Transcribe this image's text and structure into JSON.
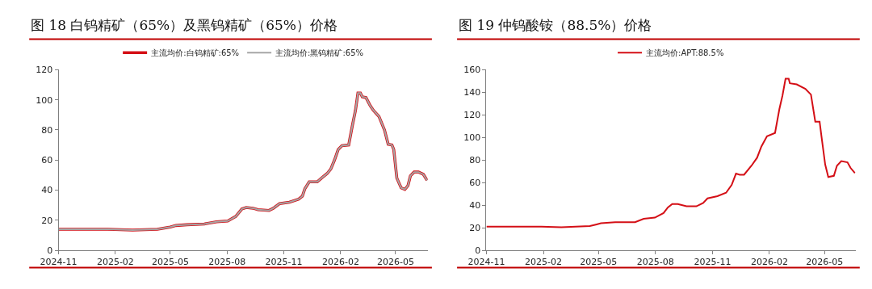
{
  "chart_data": [
    {
      "type": "line",
      "title": "图 18 白钨精矿（65%）及黑钨精矿（65%）价格",
      "legend": "top",
      "marker": "none",
      "line_style": "solid",
      "xlim": [
        "2024-11-01",
        "2026-06-22"
      ],
      "ylim": [
        0,
        120
      ],
      "yticks": [
        0,
        20,
        40,
        60,
        80,
        100,
        120
      ],
      "xticks": [
        {
          "value": "2024-11-01",
          "label": "2024-11"
        },
        {
          "value": "2025-02-01",
          "label": "2025-02"
        },
        {
          "value": "2025-05-01",
          "label": "2025-05"
        },
        {
          "value": "2025-08-01",
          "label": "2025-08"
        },
        {
          "value": "2025-11-01",
          "label": "2025-11"
        },
        {
          "value": "2026-02-01",
          "label": "2026-02"
        },
        {
          "value": "2026-05-01",
          "label": "2026-05"
        }
      ],
      "x": [
        "2024-11-01",
        "2025-01-20",
        "2025-03-01",
        "2025-04-10",
        "2025-05-01",
        "2025-05-10",
        "2025-05-28",
        "2025-06-25",
        "2025-07-15",
        "2025-08-02",
        "2025-08-15",
        "2025-08-25",
        "2025-09-01",
        "2025-09-12",
        "2025-09-20",
        "2025-10-08",
        "2025-10-15",
        "2025-10-25",
        "2025-11-10",
        "2025-11-25",
        "2025-12-01",
        "2025-12-05",
        "2025-12-12",
        "2025-12-25",
        "2026-01-01",
        "2026-01-10",
        "2026-01-16",
        "2026-01-22",
        "2026-01-28",
        "2026-02-03",
        "2026-02-14",
        "2026-02-20",
        "2026-02-25",
        "2026-03-01",
        "2026-03-05",
        "2026-03-08",
        "2026-03-14",
        "2026-03-21",
        "2026-03-26",
        "2026-04-04",
        "2026-04-13",
        "2026-04-19",
        "2026-04-25",
        "2026-04-28",
        "2026-05-03",
        "2026-05-10",
        "2026-05-16",
        "2026-05-21",
        "2026-05-25",
        "2026-05-31",
        "2026-06-07",
        "2026-06-15",
        "2026-06-21"
      ],
      "series": [
        {
          "name": "主流均价:白钨精矿:65%",
          "color": "#d40f16",
          "values": [
            14,
            14,
            13.5,
            14,
            15.5,
            16.5,
            17,
            17.5,
            19,
            19.5,
            22.5,
            27.5,
            28.5,
            28,
            27,
            26.5,
            28,
            31,
            32,
            34,
            36,
            41,
            45.5,
            45.5,
            48,
            51,
            54,
            60,
            67,
            69.5,
            70,
            83,
            93,
            104.5,
            104.5,
            102,
            101.5,
            96,
            93,
            89,
            80,
            70.5,
            70,
            67,
            48,
            41.5,
            40.5,
            43,
            49.5,
            52,
            52,
            50.5,
            46.5
          ]
        },
        {
          "name": "主流均价:黑钨精矿:65%",
          "color": "#a6a6a6",
          "values": [
            14,
            14,
            13.5,
            14,
            15.5,
            16.5,
            17,
            17.5,
            19,
            19.5,
            22.5,
            27.5,
            28.5,
            28,
            27,
            26.5,
            28,
            31,
            32,
            34,
            36,
            41,
            45.5,
            45.5,
            48,
            51,
            54,
            60,
            67,
            69.5,
            70,
            83,
            93,
            104.5,
            104.5,
            102,
            101.5,
            96,
            93,
            89,
            80,
            70.5,
            70,
            67,
            48,
            41.5,
            40.5,
            43,
            49.5,
            52,
            52,
            50.5,
            46.5
          ]
        }
      ]
    },
    {
      "type": "line",
      "title": "图 19 仲钨酸铵（88.5%）价格",
      "legend": "top",
      "marker": "none",
      "line_style": "solid",
      "xlim": [
        "2024-11-01",
        "2026-06-20"
      ],
      "ylim": [
        0,
        160
      ],
      "yticks": [
        0,
        20,
        40,
        60,
        80,
        100,
        120,
        140,
        160
      ],
      "xticks": [
        {
          "value": "2024-11-01",
          "label": "2024-11"
        },
        {
          "value": "2025-02-01",
          "label": "2025-02"
        },
        {
          "value": "2025-05-01",
          "label": "2025-05"
        },
        {
          "value": "2025-08-01",
          "label": "2025-08"
        },
        {
          "value": "2025-11-01",
          "label": "2025-11"
        },
        {
          "value": "2026-02-01",
          "label": "2026-02"
        },
        {
          "value": "2026-05-01",
          "label": "2026-05"
        }
      ],
      "x": [
        "2024-11-01",
        "2025-01-29",
        "2025-03-02",
        "2025-04-17",
        "2025-04-28",
        "2025-05-05",
        "2025-05-28",
        "2025-06-29",
        "2025-07-13",
        "2025-07-31",
        "2025-08-14",
        "2025-08-21",
        "2025-08-28",
        "2025-09-06",
        "2025-09-20",
        "2025-10-06",
        "2025-10-17",
        "2025-10-24",
        "2025-11-09",
        "2025-11-23",
        "2025-12-02",
        "2025-12-09",
        "2025-12-15",
        "2025-12-22",
        "2026-01-03",
        "2026-01-12",
        "2026-01-19",
        "2026-01-28",
        "2026-02-10",
        "2026-02-17",
        "2026-02-22",
        "2026-02-27",
        "2026-03-04",
        "2026-03-06",
        "2026-03-17",
        "2026-03-31",
        "2026-04-09",
        "2026-04-16",
        "2026-04-23",
        "2026-04-26",
        "2026-05-02",
        "2026-05-07",
        "2026-05-16",
        "2026-05-21",
        "2026-05-28",
        "2026-06-07",
        "2026-06-12",
        "2026-06-19"
      ],
      "series": [
        {
          "name": "主流均价:APT:88.5%",
          "color": "#d40f16",
          "values": [
            21,
            21,
            20.5,
            21.5,
            23,
            24,
            25,
            25,
            28,
            29,
            33,
            38,
            41,
            41,
            39,
            39,
            42,
            46,
            48,
            51,
            58,
            68,
            67,
            67,
            75,
            82,
            92,
            101,
            104,
            125,
            137,
            152,
            152,
            148,
            147,
            143,
            138,
            114,
            114,
            101,
            76,
            65,
            66,
            75,
            79,
            78,
            73,
            68.5
          ]
        }
      ]
    }
  ]
}
